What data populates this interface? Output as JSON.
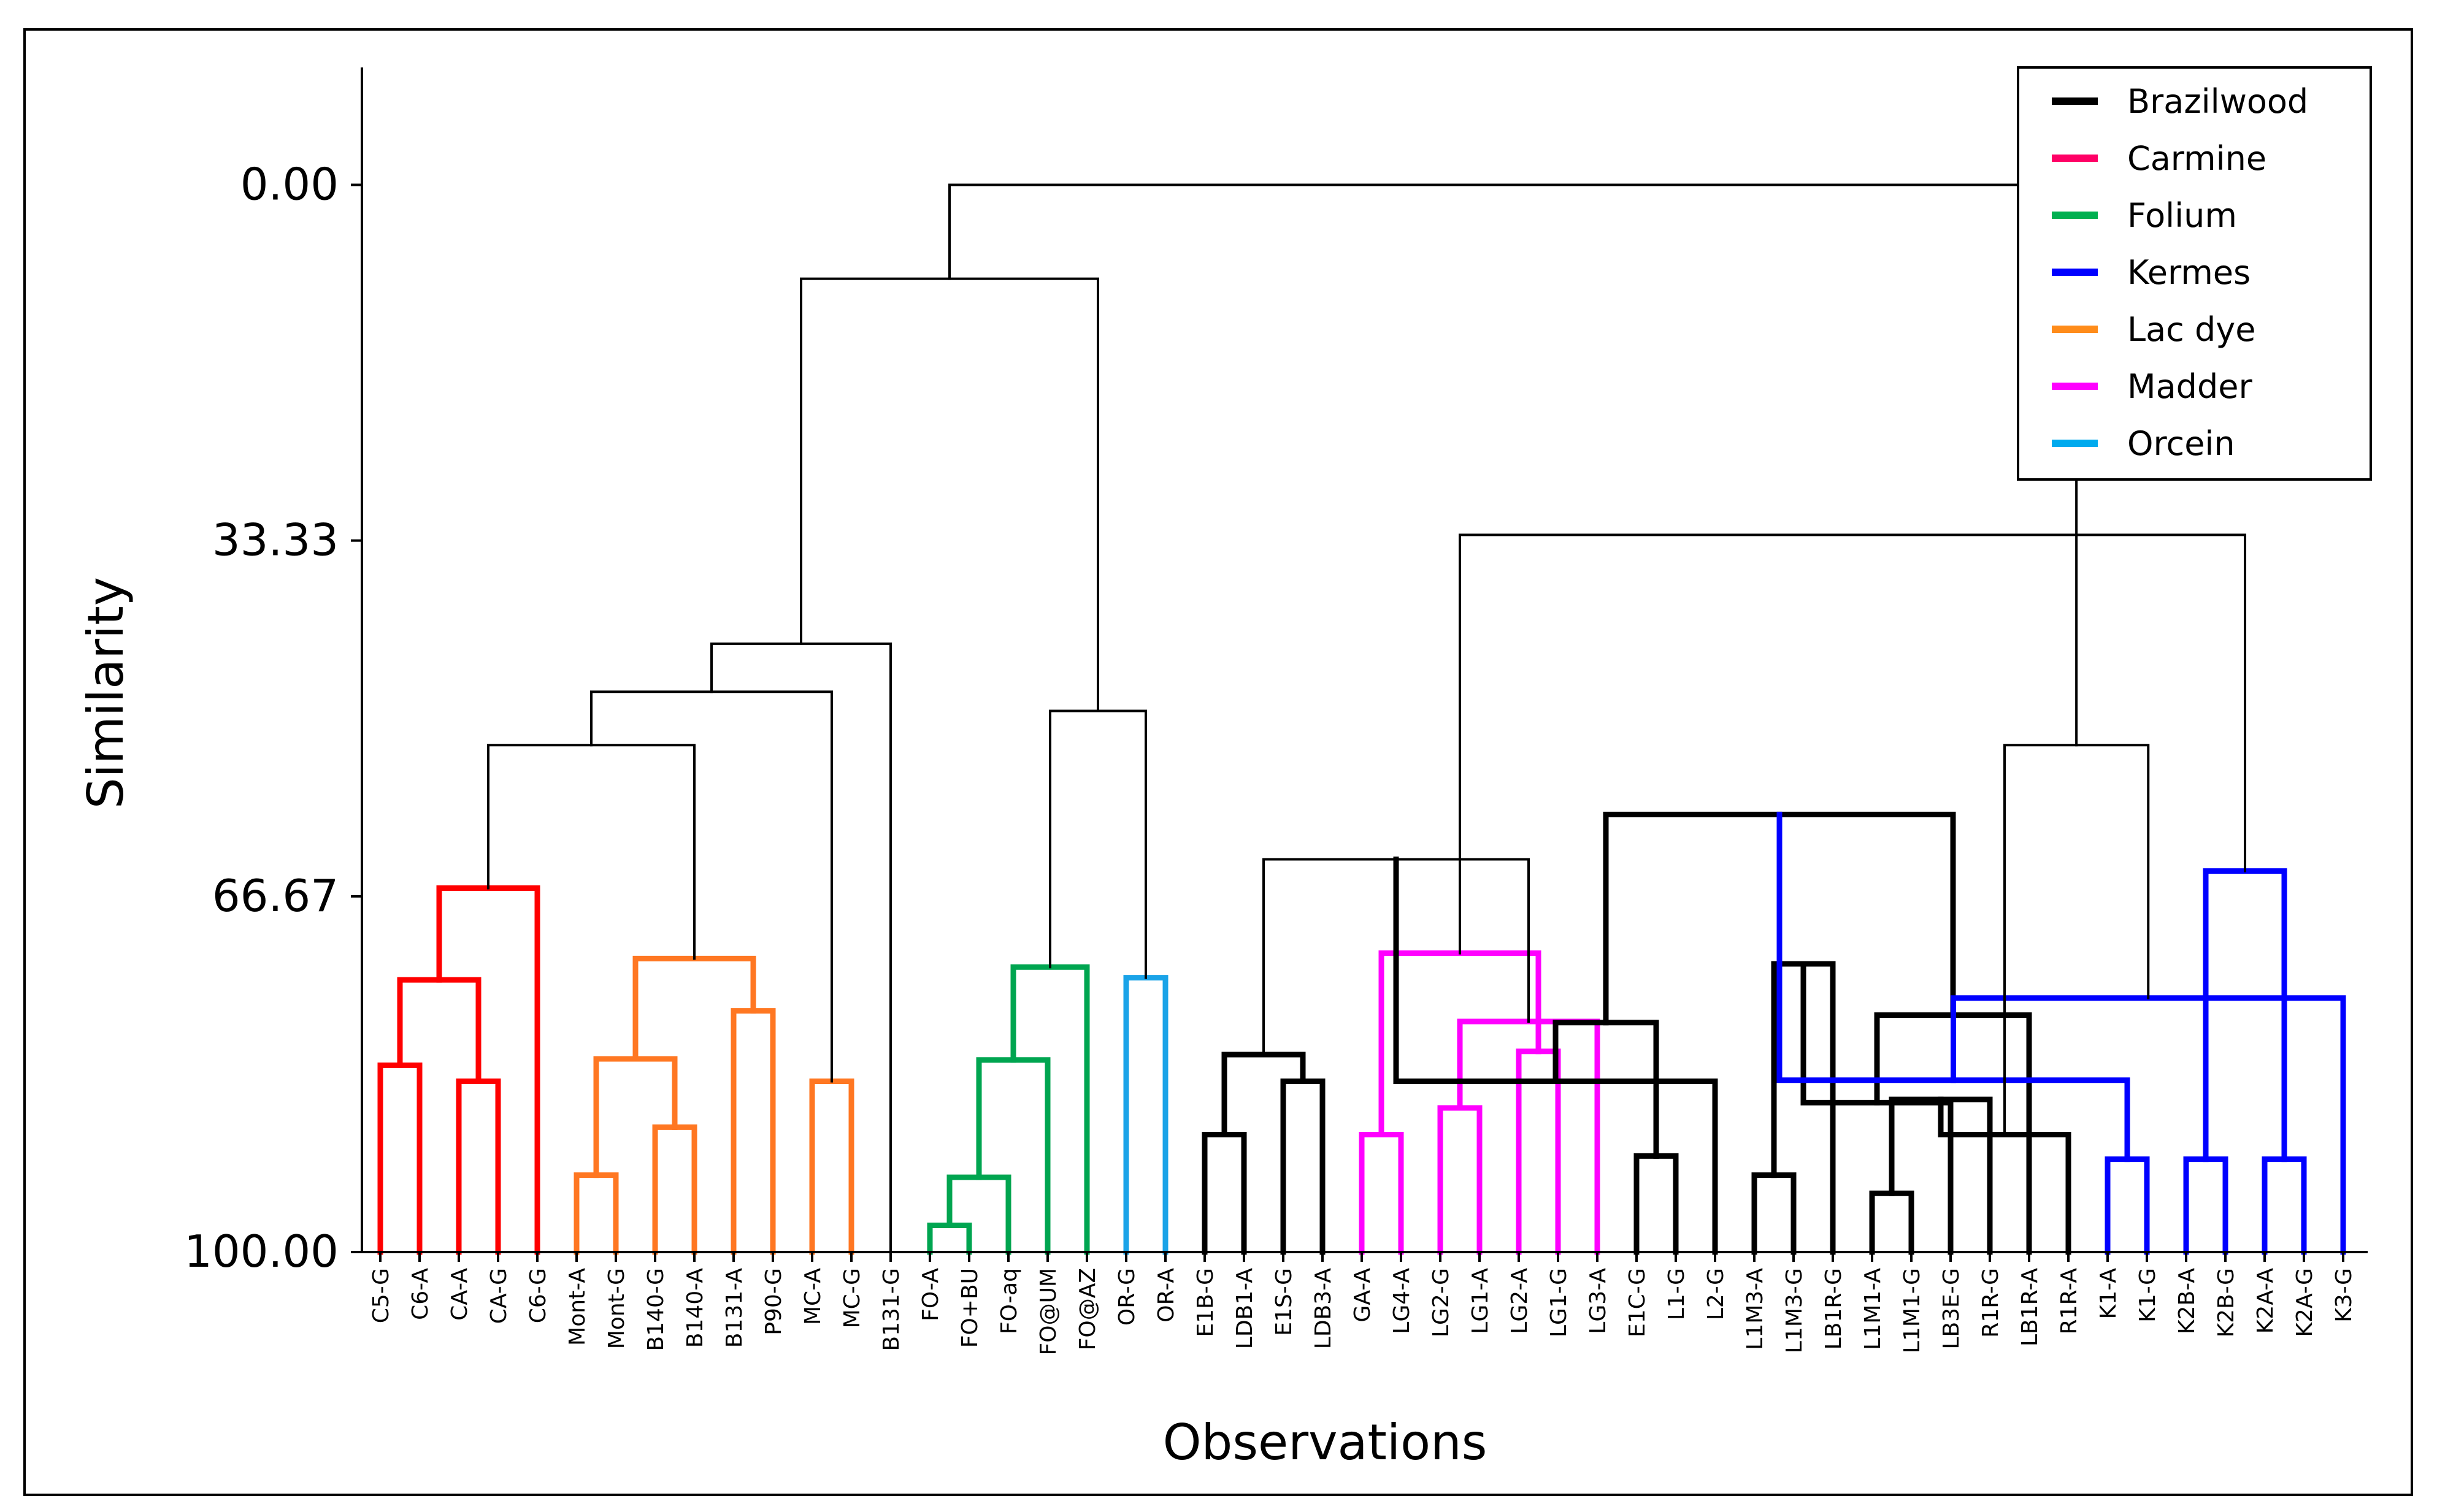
{
  "chart_data": {
    "type": "dendrogram",
    "xlabel": "Observations",
    "ylabel": "Similarity",
    "yticks": [
      "0.00",
      "33.33",
      "66.67",
      "100.00"
    ],
    "ylim": [
      -11,
      100
    ],
    "observations": [
      "C5-G",
      "C6-A",
      "CA-A",
      "CA-G",
      "C6-G",
      "Mont-A",
      "Mont-G",
      "B140-G",
      "B140-A",
      "B131-A",
      "P90-G",
      "MC-A",
      "MC-G",
      "B131-G",
      "FO-A",
      "FO+BU",
      "FO-aq",
      "FO@UM",
      "FO@AZ",
      "OR-G",
      "OR-A",
      "E1B-G",
      "LDB1-A",
      "E1S-G",
      "LDB3-A",
      "GA-A",
      "LG4-A",
      "LG2-G",
      "LG1-A",
      "LG2-A",
      "LG1-G",
      "LG3-A",
      "E1C-G",
      "L1-G",
      "L2-G",
      "L1M3-A",
      "L1M3-G",
      "LB1R-G",
      "L1M1-A",
      "L1M1-G",
      "LB3E-G",
      "R1R-G",
      "LB1R-A",
      "R1R-A",
      "K1-A",
      "K1-G",
      "K2B-A",
      "K2B-G",
      "K2A-A",
      "K2A-G",
      "K3-G"
    ],
    "legend": [
      {
        "name": "Brazilwood",
        "color": "#000000"
      },
      {
        "name": "Carmine",
        "color": "#ff0066"
      },
      {
        "name": "Folium",
        "color": "#00b050"
      },
      {
        "name": "Kermes",
        "color": "#0000ff"
      },
      {
        "name": "Lac dye",
        "color": "#ff8c1a"
      },
      {
        "name": "Madder",
        "color": "#ff00ff"
      },
      {
        "name": "Orcein",
        "color": "#00aaee"
      }
    ],
    "cluster_colors": {
      "Carmine": "#ff0000",
      "Lac dye": "#ff7722",
      "Folium": "#00a550",
      "Orcein": "#1aa3e8",
      "Brazilwood": "#000000",
      "Madder": "#ff00ff",
      "Kermes": "#0000ff",
      "Link": "#000000"
    },
    "merges": [
      {
        "a": 0,
        "b": 1,
        "s": 82.5,
        "c": "Carmine"
      },
      {
        "a": 2,
        "b": 3,
        "s": 84.0,
        "c": "Carmine"
      },
      {
        "a": "n0",
        "b": "n1",
        "s": 74.5,
        "c": "Carmine"
      },
      {
        "a": "n2",
        "b": 4,
        "s": 65.9,
        "c": "Carmine"
      },
      {
        "a": 5,
        "b": 6,
        "s": 92.8,
        "c": "Lac dye"
      },
      {
        "a": 7,
        "b": 8,
        "s": 88.3,
        "c": "Lac dye"
      },
      {
        "a": "n4",
        "b": "n5",
        "s": 81.9,
        "c": "Lac dye"
      },
      {
        "a": 9,
        "b": 10,
        "s": 77.4,
        "c": "Lac dye"
      },
      {
        "a": "n6",
        "b": "n7",
        "s": 72.5,
        "c": "Lac dye"
      },
      {
        "a": 11,
        "b": 12,
        "s": 84.0,
        "c": "Lac dye"
      },
      {
        "a": "n3",
        "b": "n8",
        "s": 52.5,
        "c": "Link"
      },
      {
        "a": "n10",
        "b": "n9",
        "s": 47.5,
        "c": "Link"
      },
      {
        "a": "n11",
        "b": 13,
        "s": 43.0,
        "c": "Link"
      },
      {
        "a": 14,
        "b": 15,
        "s": 97.5,
        "c": "Folium"
      },
      {
        "a": "n13",
        "b": 16,
        "s": 93.0,
        "c": "Folium"
      },
      {
        "a": "n14",
        "b": 17,
        "s": 82.0,
        "c": "Folium"
      },
      {
        "a": "n15",
        "b": 18,
        "s": 73.3,
        "c": "Folium"
      },
      {
        "a": 19,
        "b": 20,
        "s": 74.3,
        "c": "Orcein"
      },
      {
        "a": "n16",
        "b": "n17",
        "s": 49.3,
        "c": "Link"
      },
      {
        "a": "n12",
        "b": "n18",
        "s": 8.8,
        "c": "Link"
      },
      {
        "a": 21,
        "b": 22,
        "s": 89.0,
        "c": "Brazilwood"
      },
      {
        "a": 23,
        "b": 24,
        "s": 84.0,
        "c": "Brazilwood"
      },
      {
        "a": "n20",
        "b": "n21",
        "s": 81.5,
        "c": "Brazilwood"
      },
      {
        "a": 25,
        "b": 26,
        "s": 89.0,
        "c": "Madder"
      },
      {
        "a": 27,
        "b": 28,
        "s": 86.5,
        "c": "Madder"
      },
      {
        "a": 29,
        "b": 30,
        "s": 81.2,
        "c": "Madder"
      },
      {
        "a": "n24",
        "b": 31,
        "s": 78.4,
        "c": "Madder"
      },
      {
        "a": "n23",
        "b": "n25",
        "s": 72.0,
        "c": "Madder"
      },
      {
        "a": "n22",
        "b": "n26",
        "s": 63.2,
        "c": "Link"
      },
      {
        "a": 32,
        "b": 33,
        "s": 91.0,
        "c": "Brazilwood"
      },
      {
        "a": "n28",
        "b": 34,
        "s": 84.0,
        "c": "Brazilwood"
      },
      {
        "a": 35,
        "b": 36,
        "s": 92.8,
        "c": "Brazilwood"
      },
      {
        "a": "n29",
        "b": "n30",
        "s": 78.5,
        "c": "Brazilwood"
      },
      {
        "a": "n31",
        "b": 37,
        "s": 73.0,
        "c": "Brazilwood"
      },
      {
        "a": 38,
        "b": 39,
        "s": 94.5,
        "c": "Brazilwood"
      },
      {
        "a": "n33",
        "b": 40,
        "s": 86.0,
        "c": "Brazilwood"
      },
      {
        "a": "n34",
        "b": 41,
        "s": 85.7,
        "c": "Brazilwood"
      },
      {
        "a": "n35",
        "b": 42,
        "s": 77.8,
        "c": "Brazilwood"
      },
      {
        "a": "n36",
        "b": 43,
        "s": 89.0,
        "c": "Brazilwood"
      },
      {
        "a": "n32",
        "b": "n37",
        "s": 59.0,
        "c": "Brazilwood"
      },
      {
        "a": 44,
        "b": 45,
        "s": 91.3,
        "c": "Kermes"
      },
      {
        "a": 46,
        "b": 47,
        "s": 91.3,
        "c": "Kermes"
      },
      {
        "a": "n39",
        "b": "n40",
        "s": 83.9,
        "c": "Kermes"
      },
      {
        "a": 48,
        "b": 49,
        "s": 91.3,
        "c": "Kermes"
      },
      {
        "a": "n42",
        "b": 50,
        "s": 76.2,
        "c": "Kermes"
      },
      {
        "a": "n41",
        "b": "n43",
        "s": 64.3,
        "c": "Kermes"
      },
      {
        "a": "n38",
        "b": "n44",
        "s": 52.5,
        "c": "Link"
      },
      {
        "a": "n27",
        "b": "n45",
        "s": 32.8,
        "c": "Link"
      },
      {
        "a": "n19",
        "b": "n46",
        "s": 0.0,
        "c": "Link"
      }
    ]
  }
}
